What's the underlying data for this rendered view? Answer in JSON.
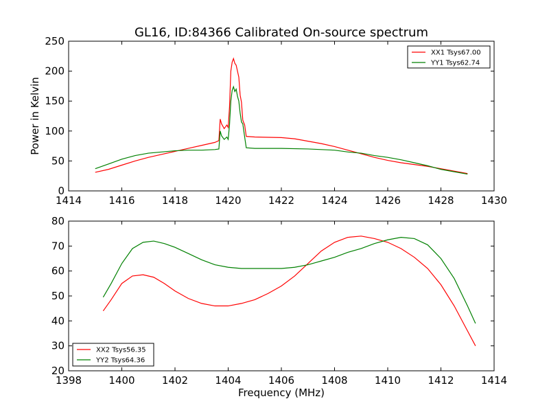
{
  "title": "GL16, ID:84366 Calibrated On-source spectrum",
  "colors": {
    "red": "#ff0000",
    "green": "#008000"
  },
  "chart_data": [
    {
      "type": "line",
      "xlim": [
        1414,
        1430
      ],
      "ylim": [
        0,
        250
      ],
      "xticks": [
        1414,
        1416,
        1418,
        1420,
        1422,
        1424,
        1426,
        1428,
        1430
      ],
      "yticks": [
        0,
        50,
        100,
        150,
        200,
        250
      ],
      "xlabel": "",
      "ylabel": "Power in Kelvin",
      "legend_position": "top-right",
      "series": [
        {
          "name": "XX1 Tsys67.00",
          "color": "#ff0000",
          "points": [
            [
              1415.0,
              31
            ],
            [
              1415.5,
              36
            ],
            [
              1416.0,
              43
            ],
            [
              1416.5,
              50
            ],
            [
              1417.0,
              56
            ],
            [
              1417.5,
              61
            ],
            [
              1418.0,
              66
            ],
            [
              1418.5,
              71
            ],
            [
              1419.0,
              76
            ],
            [
              1419.5,
              81
            ],
            [
              1419.65,
              84
            ],
            [
              1419.7,
              120
            ],
            [
              1419.75,
              112
            ],
            [
              1419.85,
              104
            ],
            [
              1419.95,
              110
            ],
            [
              1420.0,
              106
            ],
            [
              1420.05,
              140
            ],
            [
              1420.1,
              200
            ],
            [
              1420.15,
              215
            ],
            [
              1420.2,
              221
            ],
            [
              1420.25,
              213
            ],
            [
              1420.3,
              210
            ],
            [
              1420.35,
              200
            ],
            [
              1420.4,
              190
            ],
            [
              1420.45,
              160
            ],
            [
              1420.5,
              148
            ],
            [
              1420.55,
              118
            ],
            [
              1420.62,
              110
            ],
            [
              1420.68,
              91
            ],
            [
              1421.0,
              90
            ],
            [
              1422.0,
              89
            ],
            [
              1422.5,
              87
            ],
            [
              1423.0,
              83
            ],
            [
              1423.5,
              79
            ],
            [
              1424.0,
              74
            ],
            [
              1424.5,
              68
            ],
            [
              1425.0,
              62
            ],
            [
              1425.5,
              56
            ],
            [
              1426.0,
              51
            ],
            [
              1426.5,
              47
            ],
            [
              1427.0,
              44
            ],
            [
              1427.5,
              41
            ],
            [
              1428.0,
              37
            ],
            [
              1428.5,
              33
            ],
            [
              1429.0,
              29
            ]
          ]
        },
        {
          "name": "YY1 Tsys62.74",
          "color": "#008000",
          "points": [
            [
              1415.0,
              37
            ],
            [
              1415.5,
              45
            ],
            [
              1416.0,
              53
            ],
            [
              1416.5,
              59
            ],
            [
              1417.0,
              63
            ],
            [
              1417.5,
              65
            ],
            [
              1418.0,
              67
            ],
            [
              1418.5,
              68
            ],
            [
              1419.0,
              68
            ],
            [
              1419.5,
              69
            ],
            [
              1419.65,
              70
            ],
            [
              1419.7,
              100
            ],
            [
              1419.75,
              92
            ],
            [
              1419.85,
              86
            ],
            [
              1419.95,
              90
            ],
            [
              1420.0,
              86
            ],
            [
              1420.05,
              110
            ],
            [
              1420.1,
              150
            ],
            [
              1420.15,
              168
            ],
            [
              1420.2,
              174
            ],
            [
              1420.25,
              166
            ],
            [
              1420.3,
              170
            ],
            [
              1420.35,
              158
            ],
            [
              1420.4,
              150
            ],
            [
              1420.45,
              130
            ],
            [
              1420.5,
              115
            ],
            [
              1420.55,
              112
            ],
            [
              1420.62,
              90
            ],
            [
              1420.68,
              72
            ],
            [
              1421.0,
              71
            ],
            [
              1422.0,
              71
            ],
            [
              1423.0,
              70
            ],
            [
              1424.0,
              68
            ],
            [
              1424.5,
              65
            ],
            [
              1425.0,
              63
            ],
            [
              1425.5,
              59
            ],
            [
              1426.0,
              56
            ],
            [
              1426.5,
              52
            ],
            [
              1427.0,
              47
            ],
            [
              1427.5,
              42
            ],
            [
              1428.0,
              36
            ],
            [
              1428.5,
              32
            ],
            [
              1429.0,
              28
            ]
          ]
        }
      ]
    },
    {
      "type": "line",
      "xlim": [
        1398,
        1414
      ],
      "ylim": [
        20,
        80
      ],
      "xticks": [
        1398,
        1400,
        1402,
        1404,
        1406,
        1408,
        1410,
        1412,
        1414
      ],
      "yticks": [
        20,
        30,
        40,
        50,
        60,
        70,
        80
      ],
      "xlabel": "Frequency (MHz)",
      "ylabel": "",
      "legend_position": "bottom-left",
      "series": [
        {
          "name": "XX2 Tsys56.35",
          "color": "#ff0000",
          "points": [
            [
              1399.3,
              44
            ],
            [
              1399.6,
              48.5
            ],
            [
              1400.0,
              55
            ],
            [
              1400.4,
              58
            ],
            [
              1400.8,
              58.5
            ],
            [
              1401.2,
              57.5
            ],
            [
              1401.6,
              55
            ],
            [
              1402.0,
              52
            ],
            [
              1402.5,
              49
            ],
            [
              1403.0,
              47
            ],
            [
              1403.5,
              46
            ],
            [
              1404.0,
              46
            ],
            [
              1404.5,
              47
            ],
            [
              1405.0,
              48.5
            ],
            [
              1405.5,
              51
            ],
            [
              1406.0,
              54
            ],
            [
              1406.5,
              58
            ],
            [
              1407.0,
              63
            ],
            [
              1407.5,
              68
            ],
            [
              1408.0,
              71.5
            ],
            [
              1408.5,
              73.5
            ],
            [
              1409.0,
              74
            ],
            [
              1409.5,
              73
            ],
            [
              1410.0,
              71.5
            ],
            [
              1410.5,
              69
            ],
            [
              1411.0,
              65.5
            ],
            [
              1411.5,
              61
            ],
            [
              1412.0,
              54.5
            ],
            [
              1412.5,
              46
            ],
            [
              1413.0,
              36
            ],
            [
              1413.3,
              30
            ]
          ]
        },
        {
          "name": "YY2 Tsys64.36",
          "color": "#008000",
          "points": [
            [
              1399.3,
              49.5
            ],
            [
              1399.6,
              55
            ],
            [
              1400.0,
              63
            ],
            [
              1400.4,
              69
            ],
            [
              1400.8,
              71.5
            ],
            [
              1401.2,
              72
            ],
            [
              1401.6,
              71
            ],
            [
              1402.0,
              69.5
            ],
            [
              1402.5,
              67
            ],
            [
              1403.0,
              64.5
            ],
            [
              1403.5,
              62.5
            ],
            [
              1404.0,
              61.5
            ],
            [
              1404.5,
              61
            ],
            [
              1405.0,
              61
            ],
            [
              1405.5,
              61
            ],
            [
              1406.0,
              61
            ],
            [
              1406.5,
              61.5
            ],
            [
              1407.0,
              62.5
            ],
            [
              1407.5,
              64
            ],
            [
              1408.0,
              65.5
            ],
            [
              1408.5,
              67.5
            ],
            [
              1409.0,
              69
            ],
            [
              1409.5,
              71
            ],
            [
              1410.0,
              72.5
            ],
            [
              1410.5,
              73.5
            ],
            [
              1411.0,
              73
            ],
            [
              1411.5,
              70.5
            ],
            [
              1412.0,
              65
            ],
            [
              1412.5,
              57
            ],
            [
              1413.0,
              46
            ],
            [
              1413.3,
              39
            ]
          ]
        }
      ]
    }
  ]
}
